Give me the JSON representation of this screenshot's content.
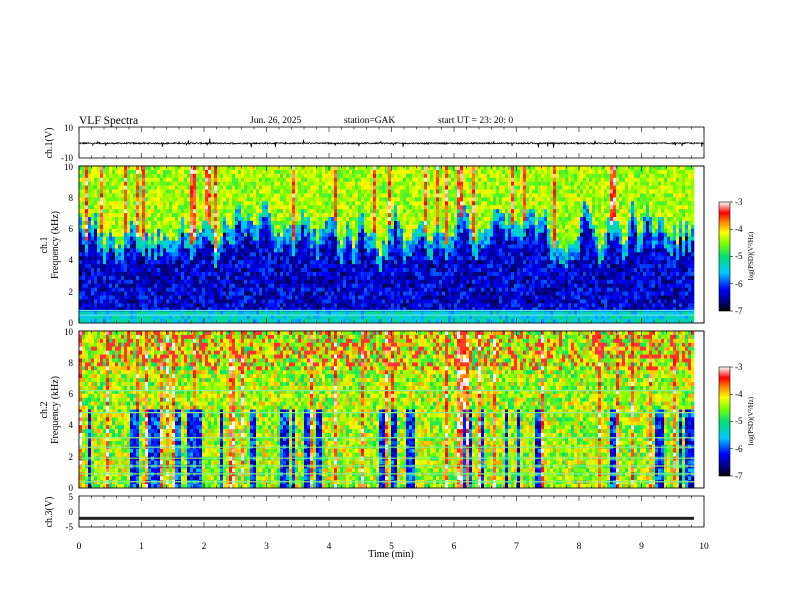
{
  "header": {
    "title": "VLF  Spectra",
    "date": "Jun. 26, 2025",
    "station": "station=GAK",
    "start_ut": "start  UT  =   23: 20: 0"
  },
  "chart_data": [
    {
      "type": "line",
      "panel": "ch1-waveform",
      "ylabel": "ch.1(V)",
      "ylim": [
        -10,
        10
      ],
      "y_tick_labels": [
        "10",
        "-10"
      ],
      "baseline": -0.5,
      "x_range_min": [
        0,
        10
      ]
    },
    {
      "type": "heatmap",
      "panel": "ch1-spectrogram",
      "ylabel_channel": "ch.1",
      "ylabel": "Frequency  (kHz)",
      "ylim": [
        0,
        10
      ],
      "y_tick_labels": [
        "0",
        "2",
        "4",
        "6",
        "8",
        "10"
      ],
      "x_range_min": [
        0,
        9.84
      ],
      "colorbar": {
        "label": "log(PSD)(V²/Hz)",
        "range": [
          -7,
          -3
        ],
        "tick_labels": [
          "-3",
          "-4",
          "-5",
          "-6",
          "-7"
        ]
      }
    },
    {
      "type": "heatmap",
      "panel": "ch2-spectrogram",
      "ylabel_channel": "ch.2",
      "ylabel": "Frequency  (kHz)",
      "ylim": [
        0,
        10
      ],
      "y_tick_labels": [
        "0",
        "2",
        "4",
        "6",
        "8",
        "10"
      ],
      "x_range_min": [
        0,
        9.84
      ],
      "colorbar": {
        "label": "log(PSD)(V²/Hz)",
        "range": [
          -7,
          -3
        ],
        "tick_labels": [
          "-3",
          "-4",
          "-5",
          "-6",
          "-7"
        ]
      }
    },
    {
      "type": "line",
      "panel": "ch3-waveform",
      "ylabel": "ch.3(V)",
      "ylim": [
        -5,
        5
      ],
      "y_tick_labels": [
        "5",
        "0",
        "-5"
      ],
      "baseline": -2.2,
      "x_range_min": [
        0,
        9.84
      ]
    }
  ],
  "x_axis": {
    "label": "Time  (min)",
    "range": [
      0,
      10
    ],
    "tick_labels": [
      "0",
      "1",
      "2",
      "3",
      "4",
      "5",
      "6",
      "7",
      "8",
      "9",
      "10"
    ]
  }
}
